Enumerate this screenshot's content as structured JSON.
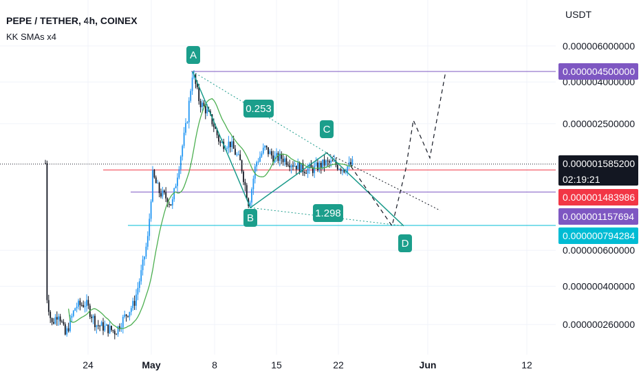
{
  "header": {
    "title": "PEPE / TETHER, 4h, COINEX",
    "indicator": "KK SMAs x4"
  },
  "colors": {
    "up": "#089981",
    "down": "#131722",
    "up_candle": "#2196f3",
    "sma": "#4caf50",
    "pattern": "#1a9a8a",
    "label_bg": "#1b9e8b",
    "purple": "#7e57c2",
    "red": "#f23645",
    "cyan": "#00bcd4",
    "black_tag": "#131722"
  },
  "chart_data": {
    "type": "candlestick",
    "symbol": "PEPE / TETHER",
    "interval": "4h",
    "exchange": "COINEX",
    "axis_unit": "USDT",
    "y_scale": "log",
    "price_ticks": [
      "0.000006000000",
      "0.000004000000",
      "0.000002500000",
      "0.000000600000",
      "0.000000400000",
      "0.000000260000"
    ],
    "time_ticks": [
      "24",
      "May",
      "8",
      "15",
      "22",
      "Jun",
      "12"
    ],
    "price_tags": [
      {
        "value": "0.000004500000",
        "color": "#7e57c2"
      },
      {
        "value": "0.000001585200",
        "sub": "02:19:21",
        "color": "#131722"
      },
      {
        "value": "0.000001483986",
        "color": "#f23645"
      },
      {
        "value": "0.000001157694",
        "color": "#7e57c2"
      },
      {
        "value": "0.000000794284",
        "color": "#00bcd4"
      }
    ],
    "pattern_points": [
      {
        "label": "A",
        "price": 4.5e-06
      },
      {
        "label": "B",
        "price": 9.7e-07
      },
      {
        "label": "C",
        "price": 1.8e-06
      },
      {
        "label": "D",
        "price": 7.9e-07
      }
    ],
    "ratios": [
      "0.253",
      "1.298"
    ],
    "projection": [
      7.9e-07,
      1.5e-06,
      2.6e-06,
      1.7e-06,
      4.5e-06
    ]
  }
}
